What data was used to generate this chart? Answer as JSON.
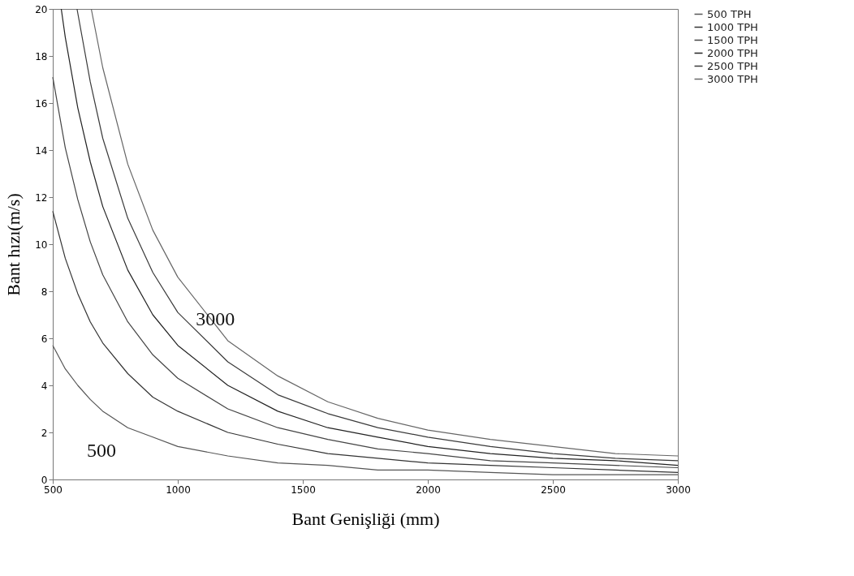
{
  "chart_data": {
    "type": "line",
    "xlabel": "Bant Genişliği (mm)",
    "ylabel": "Bant hızı(m/s)",
    "xlim": [
      500,
      3000
    ],
    "xticks": [
      500,
      1000,
      1500,
      2000,
      2500,
      3000
    ],
    "ylim": [
      0,
      20
    ],
    "yticks": [
      0,
      2,
      4,
      6,
      8,
      10,
      12,
      14,
      16,
      18,
      20
    ],
    "grid": false,
    "legend": "right",
    "line_style": "solid",
    "series": [
      {
        "name": "500 TPH",
        "color": "#555555",
        "x": [
          500,
          550,
          600,
          650,
          700,
          800,
          900,
          1000,
          1200,
          1400,
          1600,
          1800,
          2000,
          2250,
          2500,
          2750,
          3000
        ],
        "values": [
          5.7,
          4.7,
          4.0,
          3.4,
          2.9,
          2.2,
          1.8,
          1.4,
          1.0,
          0.7,
          0.6,
          0.4,
          0.4,
          0.3,
          0.2,
          0.2,
          0.2
        ]
      },
      {
        "name": "1000 TPH",
        "color": "#333333",
        "x": [
          500,
          550,
          600,
          650,
          700,
          800,
          900,
          1000,
          1200,
          1400,
          1600,
          1800,
          2000,
          2250,
          2500,
          2750,
          3000
        ],
        "values": [
          11.4,
          9.4,
          7.9,
          6.7,
          5.8,
          4.5,
          3.5,
          2.9,
          2.0,
          1.5,
          1.1,
          0.9,
          0.7,
          0.6,
          0.5,
          0.4,
          0.3
        ]
      },
      {
        "name": "1500 TPH",
        "color": "#444444",
        "x": [
          500,
          550,
          600,
          650,
          700,
          800,
          900,
          1000,
          1200,
          1400,
          1600,
          1800,
          2000,
          2250,
          2500,
          2750,
          3000
        ],
        "values": [
          17.1,
          14.1,
          11.9,
          10.1,
          8.7,
          6.7,
          5.3,
          4.3,
          3.0,
          2.2,
          1.7,
          1.3,
          1.1,
          0.8,
          0.7,
          0.6,
          0.5
        ]
      },
      {
        "name": "2000 TPH",
        "color": "#222222",
        "x": [
          534,
          550,
          600,
          650,
          700,
          800,
          900,
          1000,
          1200,
          1400,
          1600,
          1800,
          2000,
          2250,
          2500,
          2750,
          3000
        ],
        "values": [
          20.0,
          18.8,
          15.8,
          13.5,
          11.6,
          8.9,
          7.0,
          5.7,
          4.0,
          2.9,
          2.2,
          1.8,
          1.4,
          1.1,
          0.9,
          0.8,
          0.6
        ]
      },
      {
        "name": "2500 TPH",
        "color": "#3a3a3a",
        "x": [
          597,
          650,
          700,
          800,
          900,
          1000,
          1200,
          1400,
          1600,
          1800,
          2000,
          2250,
          2500,
          2750,
          3000
        ],
        "values": [
          20.0,
          16.9,
          14.5,
          11.1,
          8.8,
          7.1,
          5.0,
          3.6,
          2.8,
          2.2,
          1.8,
          1.4,
          1.1,
          0.9,
          0.8
        ]
      },
      {
        "name": "3000 TPH",
        "color": "#666666",
        "x": [
          654,
          700,
          800,
          900,
          1000,
          1200,
          1400,
          1600,
          1800,
          2000,
          2250,
          2500,
          2750,
          3000
        ],
        "values": [
          20.0,
          17.5,
          13.4,
          10.6,
          8.6,
          5.9,
          4.4,
          3.3,
          2.6,
          2.1,
          1.7,
          1.4,
          1.1,
          1.0
        ]
      }
    ],
    "annotations": [
      {
        "text": "3000",
        "x": 1150,
        "y": 6.8
      },
      "500"
    ]
  }
}
